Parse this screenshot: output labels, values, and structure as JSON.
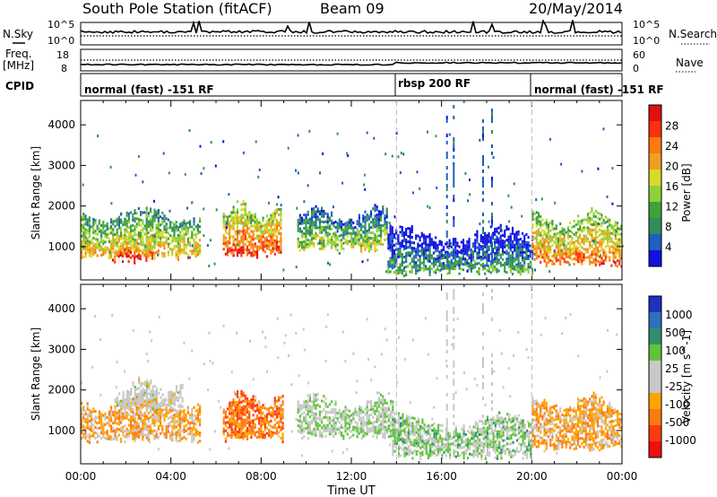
{
  "header": {
    "station": "South Pole Station (fitACF)",
    "beam": "Beam 09",
    "date": "20/May/2014"
  },
  "labels": {
    "nsky": "N.Sky",
    "nsearch": "N.Search",
    "freq_line1": "Freq.",
    "freq_line2": "[MHz]",
    "nave": "Nave",
    "cpid": "CPID",
    "exp_ticks_left": [
      "10^5",
      "10^0"
    ],
    "exp_ticks_right": [
      "10^5",
      "10^0"
    ],
    "freq_ticks": [
      "18",
      "8"
    ],
    "nave_ticks": [
      "60",
      "0"
    ]
  },
  "cpid_segments": [
    {
      "label": "normal (fast) -151 RF",
      "start_hr": 0,
      "end_hr": 14
    },
    {
      "label": "rbsp 200 RF",
      "start_hr": 14,
      "end_hr": 20
    },
    {
      "label": "normal (fast) -151 RF",
      "start_hr": 20,
      "end_hr": 24
    }
  ],
  "colors": {
    "power_scale": [
      "#1010e0",
      "#1e5fc0",
      "#2f8f5a",
      "#3fa33a",
      "#8fd03a",
      "#d9d92a",
      "#f0a020",
      "#ff7a10",
      "#ff3010",
      "#e01010"
    ],
    "velocity_scale": [
      "#2030c0",
      "#2f6fbf",
      "#2f8f6a",
      "#5fc43a",
      "#c8c8c8",
      "#c8c8c8",
      "#ffa500",
      "#ff7a10",
      "#ff3a10",
      "#ee1010"
    ],
    "dashed_line": "#bbbbbb"
  },
  "chart_data": [
    {
      "type": "heatmap",
      "title": "Power",
      "xlabel": "Time UT",
      "ylabel": "Slant Range [km]",
      "xlim_hr": [
        0,
        24
      ],
      "ylim_km": [
        180,
        4600
      ],
      "x_ticks": [
        "00:00",
        "04:00",
        "08:00",
        "12:00",
        "16:00",
        "20:00",
        "00:00"
      ],
      "y_ticks": [
        "1000",
        "2000",
        "3000",
        "4000"
      ],
      "colorbar": {
        "label": "Power [dB]",
        "ticks": [
          "4",
          "8",
          "12",
          "16",
          "20",
          "24",
          "28"
        ]
      },
      "regions": [
        {
          "t0": 0.0,
          "t1": 5.3,
          "r0": 700,
          "r1": 1900,
          "value_db": 18
        },
        {
          "t0": 1.3,
          "t1": 3.2,
          "r0": 600,
          "r1": 1100,
          "value_db": 28
        },
        {
          "t0": 6.3,
          "t1": 8.9,
          "r0": 750,
          "r1": 2000,
          "value_db": 24
        },
        {
          "t0": 9.6,
          "t1": 13.6,
          "r0": 900,
          "r1": 1900,
          "value_db": 14
        },
        {
          "t0": 13.6,
          "t1": 20.0,
          "r0": 300,
          "r1": 1400,
          "value_db": 8
        },
        {
          "t0": 20.0,
          "t1": 24.0,
          "r0": 500,
          "r1": 1800,
          "value_db": 22
        }
      ]
    },
    {
      "type": "heatmap",
      "title": "Velocity",
      "xlabel": "Time UT",
      "ylabel": "Slant Range [km]",
      "xlim_hr": [
        0,
        24
      ],
      "ylim_km": [
        180,
        4600
      ],
      "x_ticks": [
        "00:00",
        "04:00",
        "08:00",
        "12:00",
        "16:00",
        "20:00",
        "00:00"
      ],
      "y_ticks": [
        "1000",
        "2000",
        "3000",
        "4000"
      ],
      "colorbar": {
        "label": "Velocity [m s^-1]",
        "ticks": [
          "1000",
          "500",
          "100",
          "25",
          "-25",
          "-100",
          "-500",
          "-1000"
        ]
      },
      "regions": [
        {
          "t0": 0.0,
          "t1": 5.3,
          "r0": 700,
          "r1": 1800,
          "value_ms": -300
        },
        {
          "t0": 1.5,
          "t1": 4.5,
          "r0": 1500,
          "r1": 2200,
          "value_ms": 0
        },
        {
          "t0": 6.3,
          "t1": 9.0,
          "r0": 750,
          "r1": 1900,
          "value_ms": -500
        },
        {
          "t0": 9.6,
          "t1": 13.8,
          "r0": 800,
          "r1": 1800,
          "value_ms": 150
        },
        {
          "t0": 13.8,
          "t1": 20.0,
          "r0": 300,
          "r1": 1300,
          "value_ms": 200
        },
        {
          "t0": 20.0,
          "t1": 24.0,
          "r0": 500,
          "r1": 1800,
          "value_ms": -300
        }
      ]
    }
  ]
}
